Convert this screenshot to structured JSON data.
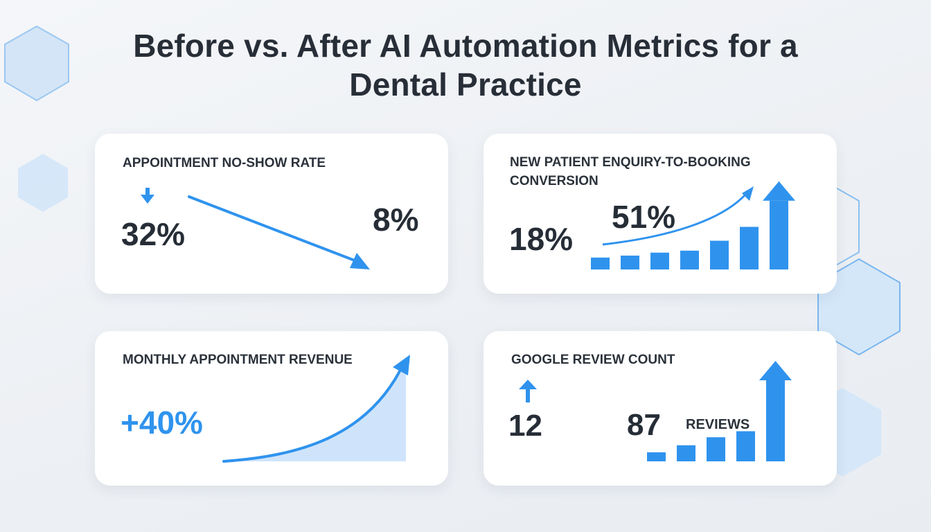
{
  "title": "Before vs. After AI Automation Metrics for a Dental Practice",
  "colors": {
    "accent": "#2f93ee",
    "accent_light": "#cfe4fb",
    "text": "#262d36",
    "card": "#ffffff",
    "background": "#eef1f4"
  },
  "chart_data": [
    {
      "type": "line",
      "title": "APPOINTMENT NO-SHOW RATE",
      "direction_icon": "arrow-down-icon",
      "before": {
        "label": "32%",
        "value": 32
      },
      "after": {
        "label": "8%",
        "value": 8
      },
      "unit": "%"
    },
    {
      "type": "bar",
      "title": "NEW PATIENT ENQUIRY-TO-BOOKING CONVERSION",
      "before": {
        "label": "18%",
        "value": 18
      },
      "after": {
        "label": "51%",
        "value": 51
      },
      "unit": "%",
      "bars": [
        0.12,
        0.14,
        0.17,
        0.19,
        0.29,
        0.43,
        0.89
      ],
      "note": "bars shown as relative heights; last bar is an up-arrow"
    },
    {
      "type": "area",
      "title": "MONTHLY APPOINTMENT REVENUE",
      "change": {
        "label": "+40%",
        "value": 40
      },
      "unit": "%"
    },
    {
      "type": "bar",
      "title": "GOOGLE REVIEW COUNT",
      "direction_icon": "arrow-up-icon",
      "before": {
        "label": "12",
        "value": 12
      },
      "after": {
        "label": "87",
        "value": 87
      },
      "after_unit": "REVIEWS",
      "bars": [
        0.09,
        0.16,
        0.24,
        0.3,
        1.0
      ],
      "note": "bars shown as relative heights; last bar is an up-arrow"
    }
  ]
}
